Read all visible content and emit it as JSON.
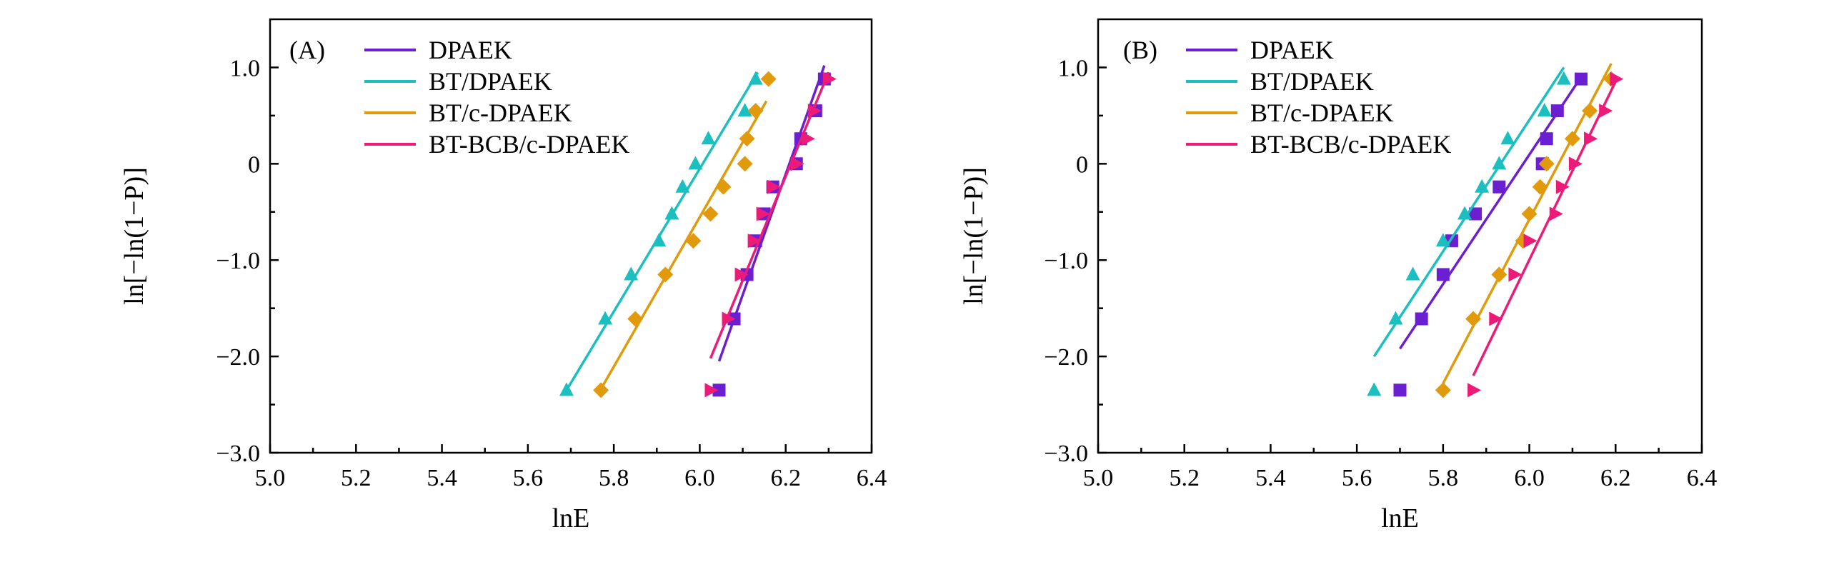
{
  "chart_data": [
    {
      "type": "scatter",
      "panel_label": "(A)",
      "xlabel": "lnE",
      "ylabel": "ln[−ln(1−P)]",
      "xlim": [
        5.0,
        6.4
      ],
      "ylim": [
        -3.0,
        1.5
      ],
      "xticks": [
        "5.0",
        "5.2",
        "5.4",
        "5.6",
        "5.8",
        "6.0",
        "6.2",
        "6.4"
      ],
      "yticks": [
        "1.0",
        "0",
        "−1.0",
        "−2.0",
        "−3.0"
      ],
      "legend_position": "top-right",
      "series": [
        {
          "name": "DPAEK",
          "color": "#6a1fd1",
          "marker": "square",
          "x": [
            6.045,
            6.08,
            6.11,
            6.13,
            6.15,
            6.17,
            6.225,
            6.235,
            6.27,
            6.29
          ],
          "y": [
            -2.35,
            -1.61,
            -1.15,
            -0.8,
            -0.52,
            -0.24,
            0.0,
            0.26,
            0.55,
            0.88
          ],
          "fit": [
            [
              6.045,
              -2.05
            ],
            [
              6.29,
              1.02
            ]
          ]
        },
        {
          "name": "BT/DPAEK",
          "color": "#1cbfbf",
          "marker": "triangle-up",
          "x": [
            5.69,
            5.78,
            5.84,
            5.905,
            5.935,
            5.96,
            5.99,
            6.02,
            6.105,
            6.13
          ],
          "y": [
            -2.35,
            -1.61,
            -1.15,
            -0.8,
            -0.52,
            -0.24,
            0.0,
            0.26,
            0.55,
            0.88
          ],
          "fit": [
            [
              5.69,
              -2.35
            ],
            [
              6.135,
              0.95
            ]
          ]
        },
        {
          "name": "BT/c-DPAEK",
          "color": "#e09a0c",
          "marker": "diamond",
          "x": [
            5.77,
            5.85,
            5.92,
            5.985,
            6.025,
            6.055,
            6.105,
            6.11,
            6.13,
            6.16
          ],
          "y": [
            -2.35,
            -1.61,
            -1.15,
            -0.8,
            -0.52,
            -0.24,
            0.0,
            0.26,
            0.55,
            0.88
          ],
          "fit": [
            [
              5.775,
              -2.3
            ],
            [
              6.155,
              0.65
            ]
          ]
        },
        {
          "name": "BT-BCB/c-DPAEK",
          "color": "#ee1a78",
          "marker": "triangle-right",
          "x": [
            6.025,
            6.065,
            6.095,
            6.125,
            6.145,
            6.17,
            6.225,
            6.25,
            6.265,
            6.3
          ],
          "y": [
            -2.35,
            -1.61,
            -1.15,
            -0.8,
            -0.52,
            -0.24,
            0.0,
            0.26,
            0.55,
            0.88
          ],
          "fit": [
            [
              6.025,
              -2.02
            ],
            [
              6.3,
              0.95
            ]
          ]
        }
      ]
    },
    {
      "type": "scatter",
      "panel_label": "(B)",
      "xlabel": "lnE",
      "ylabel": "ln[−ln(1−P)]",
      "xlim": [
        5.0,
        6.4
      ],
      "ylim": [
        -3.0,
        1.5
      ],
      "xticks": [
        "5.0",
        "5.2",
        "5.4",
        "5.6",
        "5.8",
        "6.0",
        "6.2",
        "6.4"
      ],
      "yticks": [
        "1.0",
        "0",
        "−1.0",
        "−2.0",
        "−3.0"
      ],
      "legend_position": "top-right",
      "series": [
        {
          "name": "DPAEK",
          "color": "#6a1fd1",
          "marker": "square",
          "x": [
            5.7,
            5.75,
            5.8,
            5.82,
            5.875,
            5.93,
            6.03,
            6.04,
            6.065,
            6.12
          ],
          "y": [
            -2.35,
            -1.61,
            -1.15,
            -0.8,
            -0.52,
            -0.24,
            0.0,
            0.26,
            0.55,
            0.88
          ],
          "fit": [
            [
              5.7,
              -1.92
            ],
            [
              6.12,
              0.9
            ]
          ]
        },
        {
          "name": "BT/DPAEK",
          "color": "#1cbfbf",
          "marker": "triangle-up",
          "x": [
            5.64,
            5.69,
            5.73,
            5.8,
            5.85,
            5.89,
            5.93,
            5.95,
            6.035,
            6.08
          ],
          "y": [
            -2.35,
            -1.61,
            -1.15,
            -0.8,
            -0.52,
            -0.24,
            0.0,
            0.26,
            0.55,
            0.88
          ],
          "fit": [
            [
              5.64,
              -2.0
            ],
            [
              6.08,
              1.0
            ]
          ]
        },
        {
          "name": "BT/c-DPAEK",
          "color": "#e09a0c",
          "marker": "diamond",
          "x": [
            5.8,
            5.87,
            5.93,
            5.985,
            6.0,
            6.025,
            6.04,
            6.1,
            6.14,
            6.19
          ],
          "y": [
            -2.35,
            -1.61,
            -1.15,
            -0.8,
            -0.52,
            -0.24,
            0.0,
            0.26,
            0.55,
            0.88
          ],
          "fit": [
            [
              5.8,
              -2.28
            ],
            [
              6.19,
              1.04
            ]
          ]
        },
        {
          "name": "BT-BCB/c-DPAEK",
          "color": "#ee1a78",
          "marker": "triangle-right",
          "x": [
            5.87,
            5.92,
            5.965,
            6.0,
            6.06,
            6.075,
            6.105,
            6.14,
            6.175,
            6.2
          ],
          "y": [
            -2.35,
            -1.61,
            -1.15,
            -0.8,
            -0.52,
            -0.24,
            0.0,
            0.26,
            0.55,
            0.88
          ],
          "fit": [
            [
              5.87,
              -2.2
            ],
            [
              6.205,
              0.9
            ]
          ]
        }
      ]
    }
  ]
}
